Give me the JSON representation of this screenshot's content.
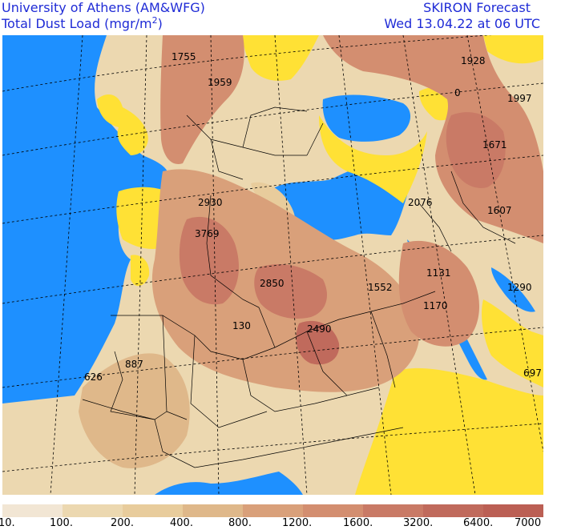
{
  "header": {
    "institution": "University of Athens (AM&WFG)",
    "variable": "Total Dust Load (mgr/m",
    "variable_exp": "2",
    "variable_close": ")",
    "model": "SKIRON Forecast",
    "valid_time": "Wed 13.04.22 at 06 UTC"
  },
  "colors": {
    "sea": "#1e90ff",
    "low_dust": "#ffe135",
    "border": "#000000",
    "gridline": "#000000"
  },
  "legend": {
    "labels": [
      "10.",
      "100.",
      "200.",
      "400.",
      "800.",
      "1200.",
      "1600.",
      "3200.",
      "6400.",
      "7000"
    ],
    "colors": [
      "#f2e6d4",
      "#ecd8b0",
      "#e8cc9c",
      "#dfb88a",
      "#d9a07a",
      "#d38e70",
      "#c97a66",
      "#c06a5c",
      "#bb5f54"
    ]
  },
  "map_labels": [
    {
      "text": "1755"
    },
    {
      "text": "1959"
    },
    {
      "text": "1928"
    },
    {
      "text": "0"
    },
    {
      "text": "1997"
    },
    {
      "text": "1671"
    },
    {
      "text": "2930"
    },
    {
      "text": "2076"
    },
    {
      "text": "1607"
    },
    {
      "text": "3769"
    },
    {
      "text": "1131"
    },
    {
      "text": "2850"
    },
    {
      "text": "1552"
    },
    {
      "text": "1290"
    },
    {
      "text": "1170"
    },
    {
      "text": "130"
    },
    {
      "text": "2490"
    },
    {
      "text": "887"
    },
    {
      "text": "626"
    },
    {
      "text": "697"
    }
  ]
}
